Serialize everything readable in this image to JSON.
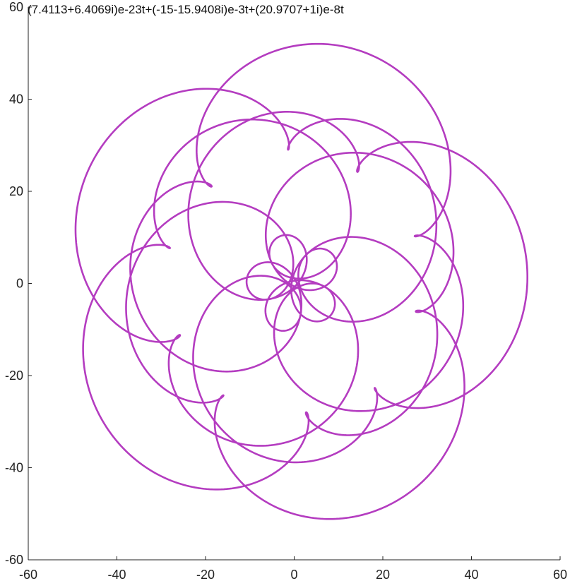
{
  "chart_data": {
    "type": "line",
    "title": "(7.4113+6.4069i)e-23t+(-15-15.9408i)e-3t+(20.9707+1i)e-8t",
    "xlim": [
      -60,
      60
    ],
    "ylim": [
      -60,
      60
    ],
    "x_ticks": [
      "-60",
      "-40",
      "-20",
      "0",
      "20",
      "40",
      "60"
    ],
    "y_ticks": [
      "-60",
      "-40",
      "-20",
      "0",
      "20",
      "40",
      "60"
    ],
    "grid": false,
    "legend": "none",
    "line_color": "#b43cc0",
    "terms": [
      {
        "re": 7.4113,
        "im": 6.4069,
        "freq": -23
      },
      {
        "re": -15,
        "im": -15.9408,
        "freq": -3
      },
      {
        "re": 20.9707,
        "im": 1,
        "freq": -8
      }
    ],
    "series": [
      {
        "t_range": [
          0,
          6.283185307
        ],
        "samples": 4000
      }
    ]
  }
}
